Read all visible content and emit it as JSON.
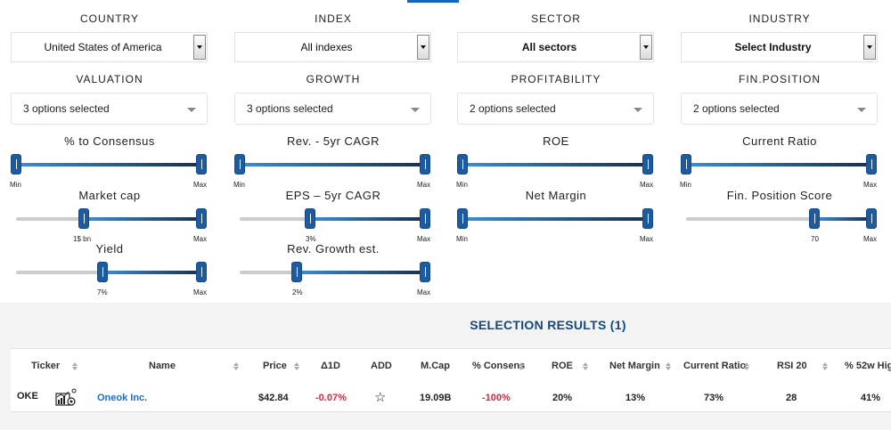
{
  "filters": {
    "country": {
      "header": "COUNTRY",
      "value": "United States of America"
    },
    "index": {
      "header": "INDEX",
      "value": "All indexes"
    },
    "sector": {
      "header": "SECTOR",
      "value": "All sectors"
    },
    "industry": {
      "header": "INDUSTRY",
      "value": "Select Industry"
    },
    "valuation": {
      "header": "VALUATION",
      "value": "3 options selected"
    },
    "growth": {
      "header": "GROWTH",
      "value": "3 options selected"
    },
    "profitability": {
      "header": "PROFITABILITY",
      "value": "2 options selected"
    },
    "fin_position": {
      "header": "FIN.POSITION",
      "value": "2 options selected"
    }
  },
  "sliders": {
    "pct_consensus": {
      "label": "% to Consensus",
      "min_label": "Min",
      "max_label": "Max"
    },
    "market_cap": {
      "label": "Market cap",
      "min_label": "1$ bn",
      "max_label": "Max"
    },
    "yield": {
      "label": "Yield",
      "min_label": "7%",
      "max_label": "Max"
    },
    "rev_cagr": {
      "label": "Rev. - 5yr CAGR",
      "min_label": "Min",
      "max_label": "Max"
    },
    "eps_cagr": {
      "label": "EPS – 5yr CAGR",
      "min_label": "3%",
      "max_label": "Max"
    },
    "rev_growth": {
      "label": "Rev. Growth est.",
      "min_label": "2%",
      "max_label": "Max"
    },
    "roe": {
      "label": "ROE",
      "min_label": "Min",
      "max_label": "Max"
    },
    "net_margin": {
      "label": "Net Margin",
      "min_label": "Min",
      "max_label": "Max"
    },
    "current_ratio": {
      "label": "Current Ratio",
      "min_label": "Min",
      "max_label": "Max"
    },
    "fin_score": {
      "label": "Fin. Position Score",
      "min_label": "70",
      "max_label": "Max"
    }
  },
  "results": {
    "title": "SELECTION RESULTS (1)",
    "columns": {
      "ticker": "Ticker",
      "name": "Name",
      "price": "Price",
      "change": "Δ1D",
      "add": "ADD",
      "mcap": "M.Cap",
      "consensus": "% Consens",
      "roe": "ROE",
      "net_margin": "Net Margin",
      "current_ratio": "Current Ratio",
      "rsi": "RSI 20",
      "w52": "% 52w Hig"
    },
    "rows": [
      {
        "ticker": "OKE",
        "name": "Oneok Inc.",
        "price": "$42.84",
        "change": "-0.07%",
        "mcap": "19.09B",
        "consensus": "-100%",
        "roe": "20%",
        "net_margin": "13%",
        "current_ratio": "73%",
        "rsi": "28",
        "w52": "41%"
      }
    ]
  },
  "icons": {
    "select_arrow": "caret-down-icon",
    "sort": "sort-icon",
    "add": "star-icon",
    "ticker_logo": "stock-chart-icon"
  },
  "colors": {
    "accent": "#1565c0",
    "title": "#14497f",
    "negative": "#e0243a",
    "link": "#1a6fd0",
    "handle": "#1e5aa0"
  }
}
